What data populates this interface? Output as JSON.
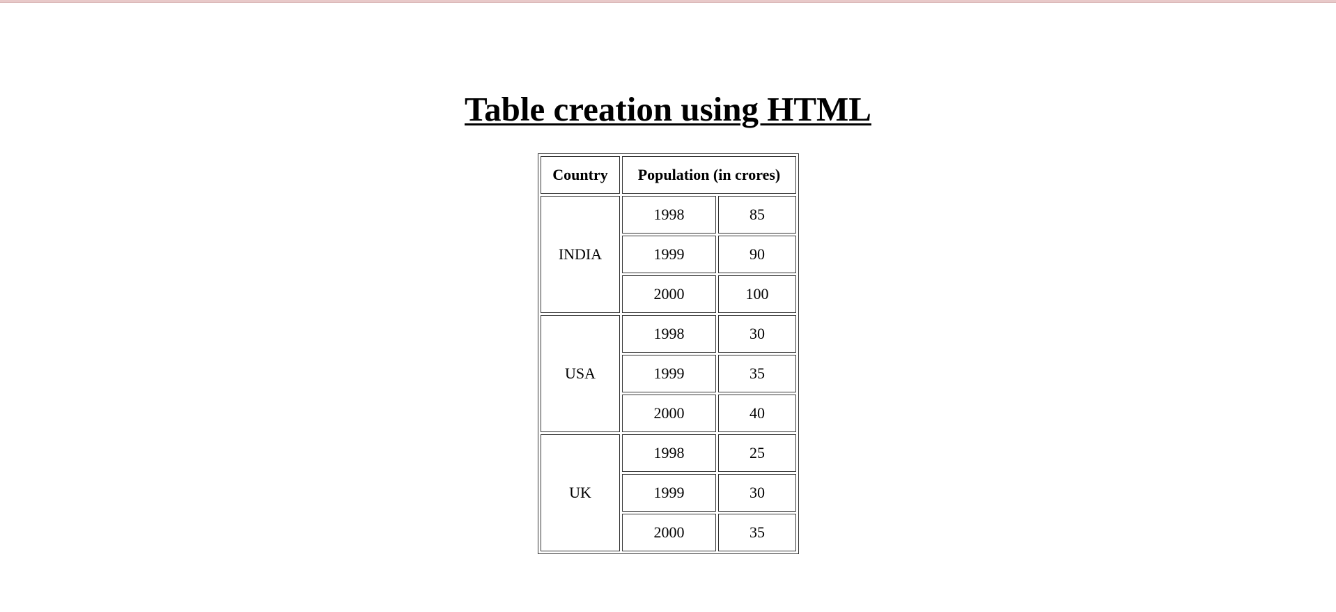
{
  "page": {
    "title": "Table creation using HTML"
  },
  "table": {
    "headers": {
      "country": "Country",
      "population": "Population (in crores)"
    },
    "groups": [
      {
        "country": "INDIA",
        "rows": [
          {
            "year": "1998",
            "value": "85"
          },
          {
            "year": "1999",
            "value": "90"
          },
          {
            "year": "2000",
            "value": "100"
          }
        ]
      },
      {
        "country": "USA",
        "rows": [
          {
            "year": "1998",
            "value": "30"
          },
          {
            "year": "1999",
            "value": "35"
          },
          {
            "year": "2000",
            "value": "40"
          }
        ]
      },
      {
        "country": "UK",
        "rows": [
          {
            "year": "1998",
            "value": "25"
          },
          {
            "year": "1999",
            "value": "30"
          },
          {
            "year": "2000",
            "value": "35"
          }
        ]
      }
    ]
  }
}
